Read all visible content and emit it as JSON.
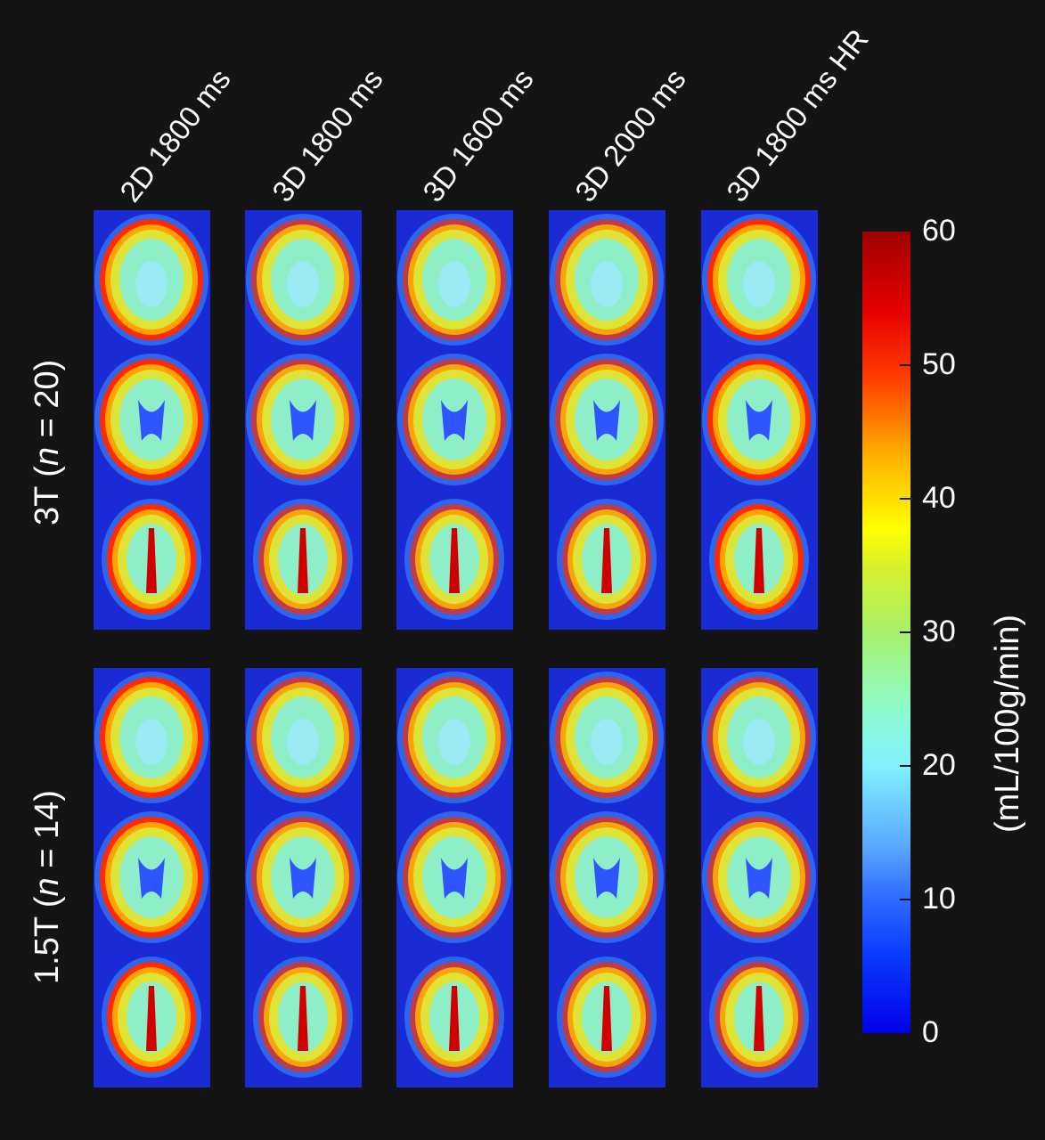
{
  "columns": [
    "2D 1800 ms",
    "3D 1800 ms",
    "3D 1600 ms",
    "3D 2000 ms",
    "3D 1800 ms HR"
  ],
  "rows": {
    "row_3t": {
      "prefix": "3T (",
      "n": "n",
      "rest": " = 20)"
    },
    "row_15t": {
      "prefix": "1.5T (",
      "n": "n",
      "rest": " = 14)"
    }
  },
  "colorbar": {
    "ticks": [
      "60",
      "50",
      "40",
      "30",
      "20",
      "10",
      "0"
    ],
    "unit": "(mL/100g/min)",
    "colors": {
      "max": "#a00000",
      "mid": "#ffff00",
      "min": "#0000e6"
    }
  }
}
